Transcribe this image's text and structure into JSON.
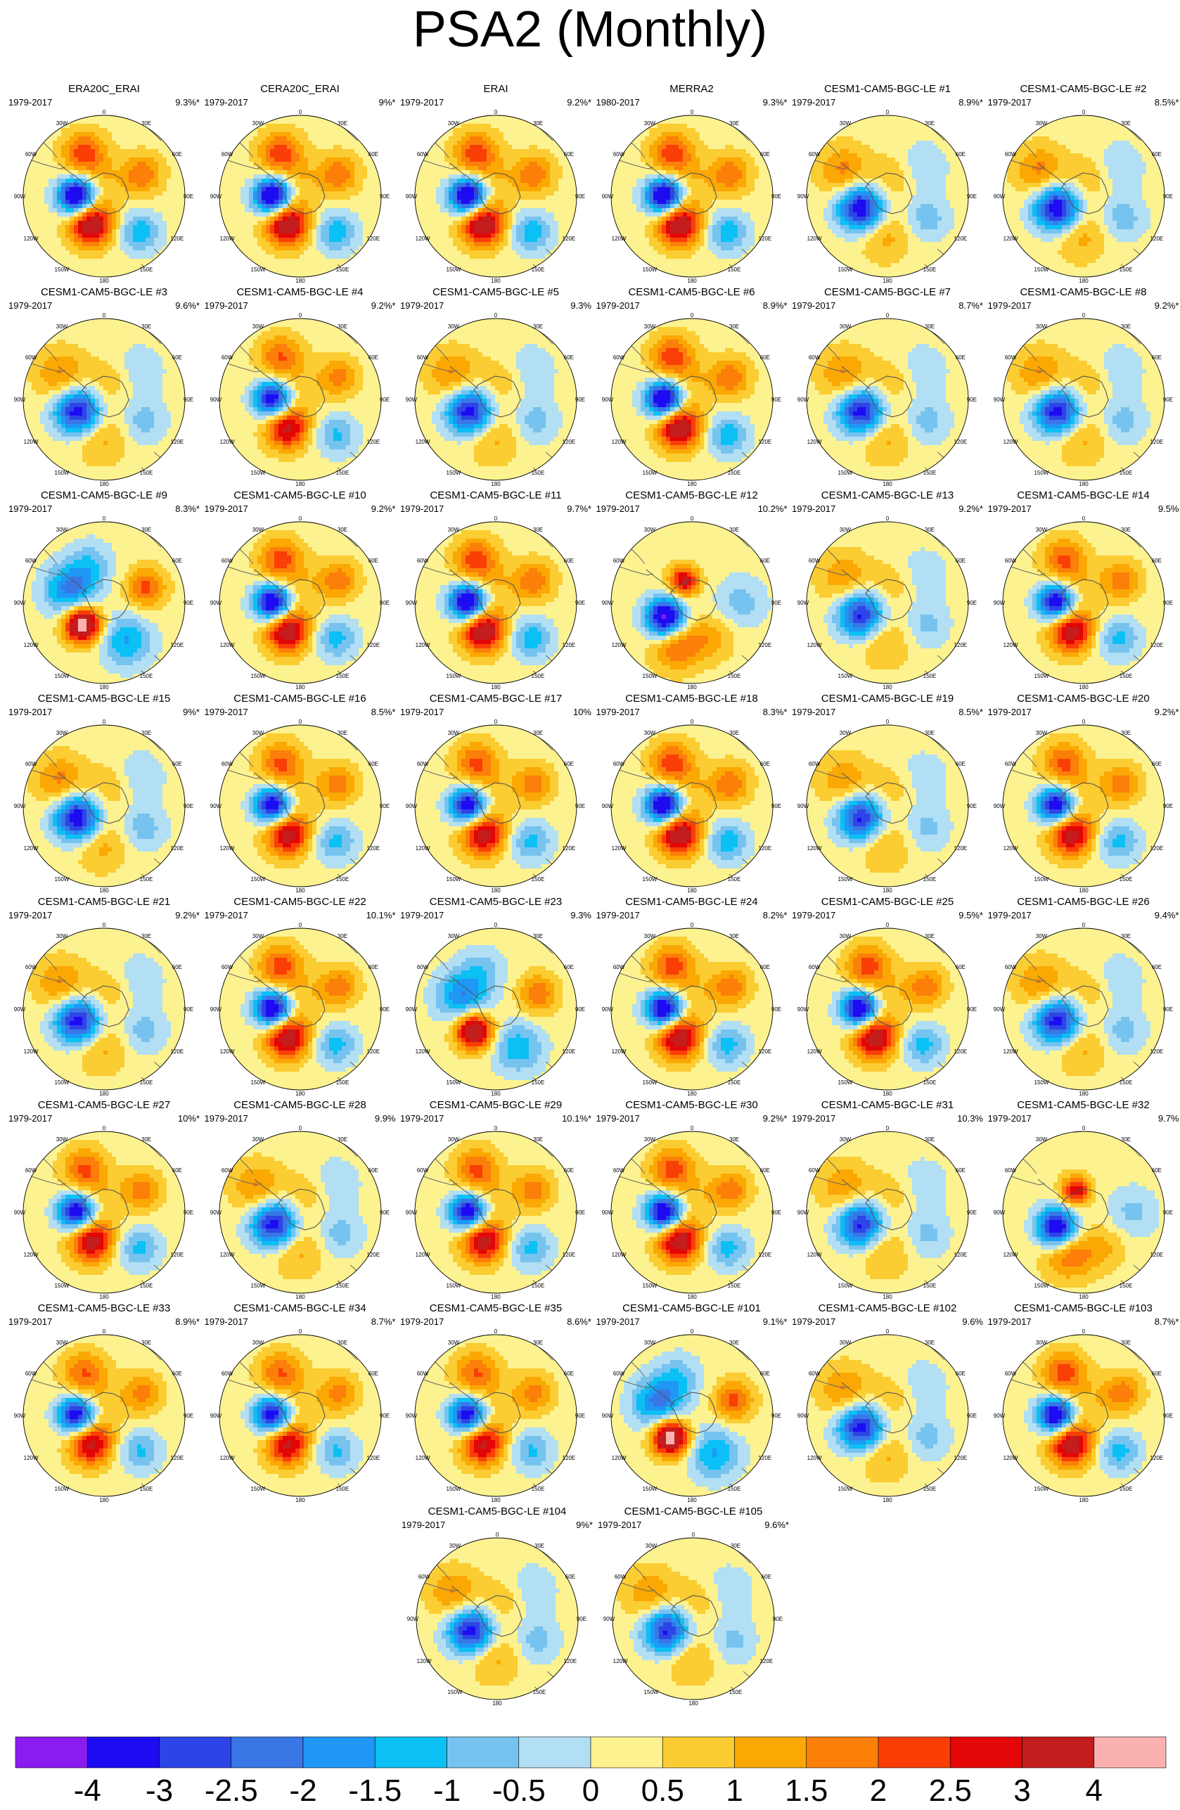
{
  "title": "PSA2 (Monthly)",
  "map": {
    "lon_labels": [
      "0",
      "30E",
      "60E",
      "90E",
      "120E",
      "150E",
      "180",
      "150W",
      "120W",
      "90W",
      "60W",
      "30W"
    ]
  },
  "colorbar": {
    "colors": [
      "#8b1cf0",
      "#1d0cf2",
      "#2d45e6",
      "#3976e6",
      "#1f97f5",
      "#0bc0f4",
      "#77c3ef",
      "#b2dff3",
      "#fdf290",
      "#fbcd32",
      "#fba804",
      "#fb7f09",
      "#f93f05",
      "#e30606",
      "#c41d1d",
      "#fcb1b1"
    ],
    "labels": [
      "-4",
      "-3",
      "-2.5",
      "-2",
      "-1.5",
      "-1",
      "-0.5",
      "0",
      "0.5",
      "1",
      "1.5",
      "2",
      "2.5",
      "3",
      "4"
    ]
  },
  "panels": [
    {
      "name": "ERA20C_ERAI",
      "period": "1979-2017",
      "variance": "9.3%*",
      "pattern": "pos",
      "scale": 1.0
    },
    {
      "name": "CERA20C_ERAI",
      "period": "1979-2017",
      "variance": "9%*",
      "pattern": "pos",
      "scale": 1.0
    },
    {
      "name": "ERAI",
      "period": "1979-2017",
      "variance": "9.2%*",
      "pattern": "pos",
      "scale": 1.0
    },
    {
      "name": "MERRA2",
      "period": "1980-2017",
      "variance": "9.3%*",
      "pattern": "pos",
      "scale": 1.0
    },
    {
      "name": "CESM1-CAM5-BGC-LE #1",
      "period": "1979-2017",
      "variance": "8.9%*",
      "pattern": "weak",
      "scale": 0.9
    },
    {
      "name": "CESM1-CAM5-BGC-LE #2",
      "period": "1979-2017",
      "variance": "8.5%*",
      "pattern": "weak",
      "scale": 0.9
    },
    {
      "name": "CESM1-CAM5-BGC-LE #3",
      "period": "1979-2017",
      "variance": "9.6%*",
      "pattern": "weak",
      "scale": 0.85
    },
    {
      "name": "CESM1-CAM5-BGC-LE #4",
      "period": "1979-2017",
      "variance": "9.2%*",
      "pattern": "pos",
      "scale": 0.85
    },
    {
      "name": "CESM1-CAM5-BGC-LE #5",
      "period": "1979-2017",
      "variance": "9.3%",
      "pattern": "weak",
      "scale": 0.85
    },
    {
      "name": "CESM1-CAM5-BGC-LE #6",
      "period": "1979-2017",
      "variance": "8.9%*",
      "pattern": "pos",
      "scale": 1.0
    },
    {
      "name": "CESM1-CAM5-BGC-LE #7",
      "period": "1979-2017",
      "variance": "8.7%*",
      "pattern": "weak",
      "scale": 0.85
    },
    {
      "name": "CESM1-CAM5-BGC-LE #8",
      "period": "1979-2017",
      "variance": "9.2%*",
      "pattern": "weak",
      "scale": 0.85
    },
    {
      "name": "CESM1-CAM5-BGC-LE #9",
      "period": "1979-2017",
      "variance": "8.3%*",
      "pattern": "inv",
      "scale": 1.0
    },
    {
      "name": "CESM1-CAM5-BGC-LE #10",
      "period": "1979-2017",
      "variance": "9.2%*",
      "pattern": "pos",
      "scale": 0.95
    },
    {
      "name": "CESM1-CAM5-BGC-LE #11",
      "period": "1979-2017",
      "variance": "9.7%*",
      "pattern": "pos",
      "scale": 1.0
    },
    {
      "name": "CESM1-CAM5-BGC-LE #12",
      "period": "1979-2017",
      "variance": "10.2%*",
      "pattern": "north",
      "scale": 1.0
    },
    {
      "name": "CESM1-CAM5-BGC-LE #13",
      "period": "1979-2017",
      "variance": "9.2%*",
      "pattern": "weak",
      "scale": 0.8
    },
    {
      "name": "CESM1-CAM5-BGC-LE #14",
      "period": "1979-2017",
      "variance": "9.5%",
      "pattern": "pos",
      "scale": 0.9
    },
    {
      "name": "CESM1-CAM5-BGC-LE #15",
      "period": "1979-2017",
      "variance": "9%*",
      "pattern": "weak",
      "scale": 0.9
    },
    {
      "name": "CESM1-CAM5-BGC-LE #16",
      "period": "1979-2017",
      "variance": "8.5%*",
      "pattern": "pos",
      "scale": 0.9
    },
    {
      "name": "CESM1-CAM5-BGC-LE #17",
      "period": "1979-2017",
      "variance": "10%",
      "pattern": "pos",
      "scale": 0.9
    },
    {
      "name": "CESM1-CAM5-BGC-LE #18",
      "period": "1979-2017",
      "variance": "8.3%*",
      "pattern": "pos",
      "scale": 1.0
    },
    {
      "name": "CESM1-CAM5-BGC-LE #19",
      "period": "1979-2017",
      "variance": "8.5%*",
      "pattern": "weak",
      "scale": 0.8
    },
    {
      "name": "CESM1-CAM5-BGC-LE #20",
      "period": "1979-2017",
      "variance": "9.2%*",
      "pattern": "pos",
      "scale": 0.9
    },
    {
      "name": "CESM1-CAM5-BGC-LE #21",
      "period": "1979-2017",
      "variance": "9.2%*",
      "pattern": "weak",
      "scale": 0.85
    },
    {
      "name": "CESM1-CAM5-BGC-LE #22",
      "period": "1979-2017",
      "variance": "10.1%*",
      "pattern": "pos",
      "scale": 0.95
    },
    {
      "name": "CESM1-CAM5-BGC-LE #23",
      "period": "1979-2017",
      "variance": "9.3%",
      "pattern": "inv",
      "scale": 0.9
    },
    {
      "name": "CESM1-CAM5-BGC-LE #24",
      "period": "1979-2017",
      "variance": "8.2%*",
      "pattern": "pos",
      "scale": 0.95
    },
    {
      "name": "CESM1-CAM5-BGC-LE #25",
      "period": "1979-2017",
      "variance": "9.5%*",
      "pattern": "pos",
      "scale": 0.95
    },
    {
      "name": "CESM1-CAM5-BGC-LE #26",
      "period": "1979-2017",
      "variance": "9.4%*",
      "pattern": "weak",
      "scale": 0.85
    },
    {
      "name": "CESM1-CAM5-BGC-LE #27",
      "period": "1979-2017",
      "variance": "10%*",
      "pattern": "pos",
      "scale": 0.9
    },
    {
      "name": "CESM1-CAM5-BGC-LE #28",
      "period": "1979-2017",
      "variance": "9.9%",
      "pattern": "weak",
      "scale": 0.85
    },
    {
      "name": "CESM1-CAM5-BGC-LE #29",
      "period": "1979-2017",
      "variance": "10.1%*",
      "pattern": "pos",
      "scale": 0.9
    },
    {
      "name": "CESM1-CAM5-BGC-LE #30",
      "period": "1979-2017",
      "variance": "9.2%*",
      "pattern": "pos",
      "scale": 0.95
    },
    {
      "name": "CESM1-CAM5-BGC-LE #31",
      "period": "1979-2017",
      "variance": "10.3%",
      "pattern": "weak",
      "scale": 0.8
    },
    {
      "name": "CESM1-CAM5-BGC-LE #32",
      "period": "1979-2017",
      "variance": "9.7%",
      "pattern": "north",
      "scale": 0.9
    },
    {
      "name": "CESM1-CAM5-BGC-LE #33",
      "period": "1979-2017",
      "variance": "8.9%*",
      "pattern": "pos",
      "scale": 0.85
    },
    {
      "name": "CESM1-CAM5-BGC-LE #34",
      "period": "1979-2017",
      "variance": "8.7%*",
      "pattern": "pos",
      "scale": 0.85
    },
    {
      "name": "CESM1-CAM5-BGC-LE #35",
      "period": "1979-2017",
      "variance": "8.6%*",
      "pattern": "pos",
      "scale": 0.85
    },
    {
      "name": "CESM1-CAM5-BGC-LE #101",
      "period": "1979-2017",
      "variance": "9.1%*",
      "pattern": "inv",
      "scale": 1.0
    },
    {
      "name": "CESM1-CAM5-BGC-LE #102",
      "period": "1979-2017",
      "variance": "9.6%",
      "pattern": "weak",
      "scale": 0.85
    },
    {
      "name": "CESM1-CAM5-BGC-LE #103",
      "period": "1979-2017",
      "variance": "8.7%*",
      "pattern": "pos",
      "scale": 0.95
    },
    {
      "name": "CESM1-CAM5-BGC-LE #104",
      "period": "1979-2017",
      "variance": "9%*",
      "pattern": "weak",
      "scale": 0.85
    },
    {
      "name": "CESM1-CAM5-BGC-LE #105",
      "period": "1979-2017",
      "variance": "9.6%*",
      "pattern": "weak",
      "scale": 0.8
    }
  ]
}
